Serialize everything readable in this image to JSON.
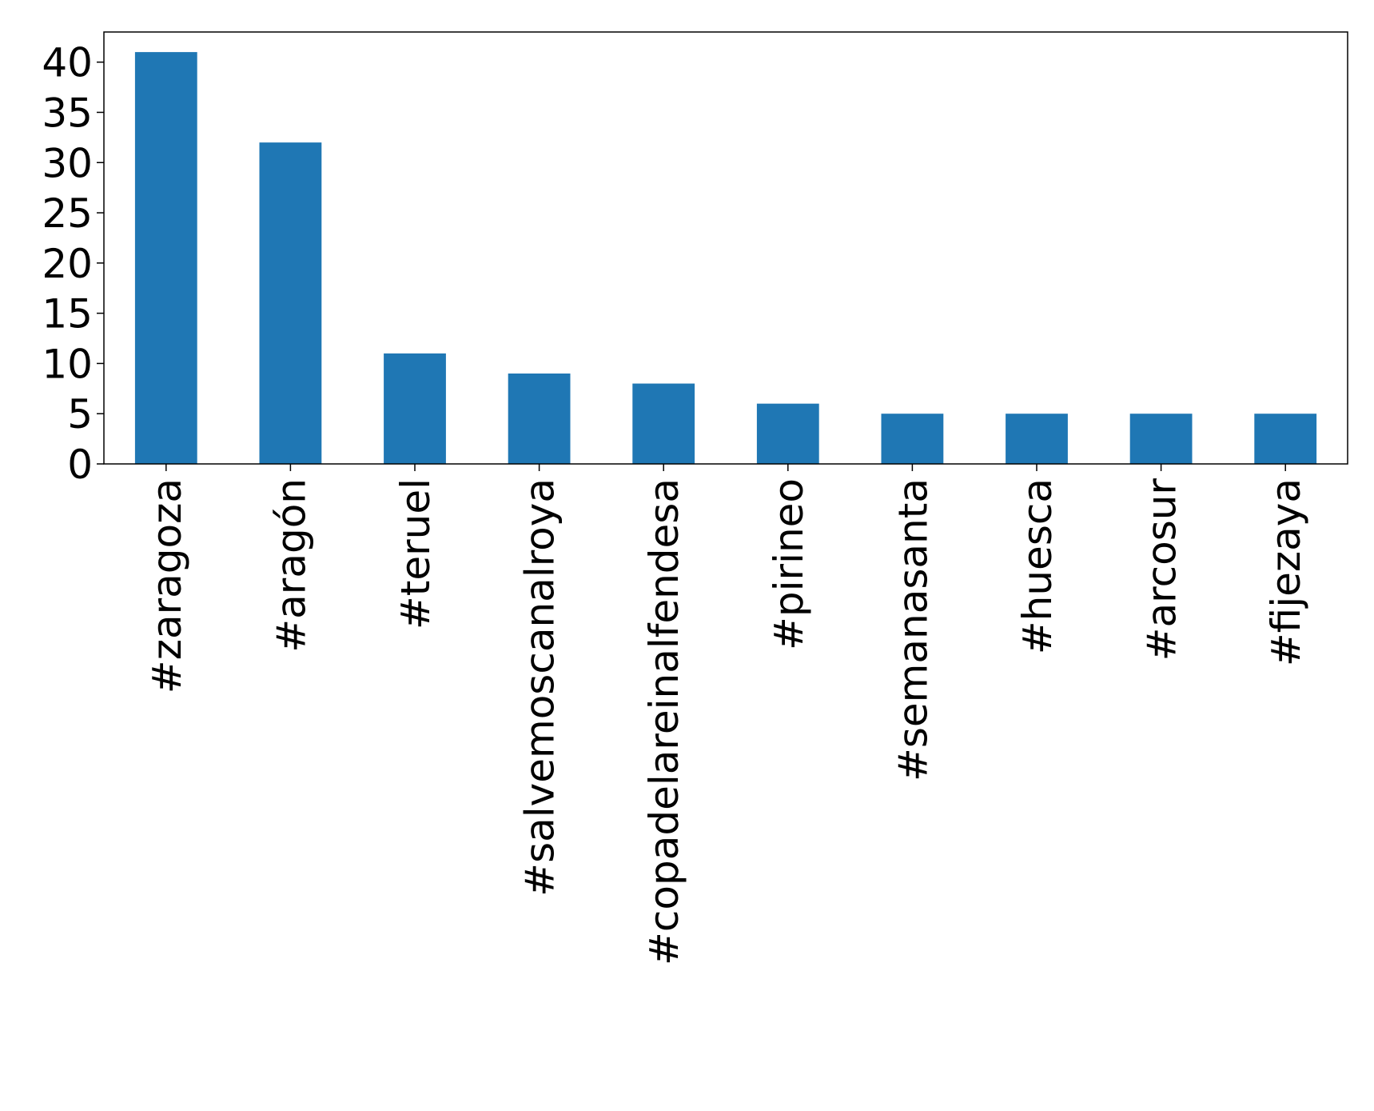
{
  "chart_data": {
    "type": "bar",
    "title": "",
    "xlabel": "",
    "ylabel": "",
    "categories": [
      "#zaragoza",
      "#aragón",
      "#teruel",
      "#salvemoscanalroya",
      "#copadelareinalfendesa",
      "#pirineo",
      "#semanasanta",
      "#huesca",
      "#arcosur",
      "#fijezaya"
    ],
    "values": [
      41,
      32,
      11,
      9,
      8,
      6,
      5,
      5,
      5,
      5
    ],
    "ylim": [
      0,
      43
    ],
    "yticks": [
      0,
      5,
      10,
      15,
      20,
      25,
      30,
      35,
      40
    ],
    "grid": false,
    "legend": "none",
    "colors": {
      "bar": "#1f77b4",
      "axis": "#000000"
    }
  }
}
